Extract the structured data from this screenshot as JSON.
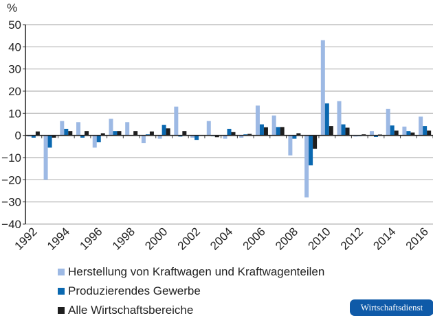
{
  "chart_data": {
    "type": "bar",
    "ylabel": "%",
    "ylim": [
      -40,
      50
    ],
    "yticks": [
      50,
      40,
      30,
      20,
      10,
      0,
      -10,
      -20,
      -30,
      -40
    ],
    "grid": true,
    "legend_position": "bottom",
    "categories": [
      1992,
      1993,
      1994,
      1995,
      1996,
      1997,
      1998,
      1999,
      2000,
      2001,
      2002,
      2003,
      2004,
      2005,
      2006,
      2007,
      2008,
      2009,
      2010,
      2011,
      2012,
      2013,
      2014,
      2015,
      2016
    ],
    "tick_labels": [
      "1992",
      "1994",
      "1996",
      "1998",
      "2000",
      "2002",
      "2004",
      "2006",
      "2008",
      "2010",
      "2012",
      "2014",
      "2016"
    ],
    "series": [
      {
        "name": "Herstellung von Kraftwagen und Kraftwagenteilen",
        "color": "#9db9e4",
        "values": [
          -0.5,
          -20,
          6.5,
          6,
          -5.5,
          7.5,
          6,
          -3.5,
          -1.5,
          13,
          -1,
          6.5,
          -1.5,
          -1,
          13.5,
          9,
          -9,
          -28,
          43,
          15.5,
          -0.5,
          2,
          12,
          4,
          8.5
        ]
      },
      {
        "name": "Produzierendes Gewerbe",
        "color": "#0a68b0",
        "values": [
          -1,
          -5.5,
          3,
          -1,
          -3,
          2,
          0.2,
          0.5,
          4.8,
          -0.5,
          -2,
          -0.3,
          3,
          0.5,
          5,
          3.8,
          -1.5,
          -13.5,
          14.5,
          5,
          -0.3,
          -0.7,
          4.5,
          2,
          4.2
        ]
      },
      {
        "name": "Alle Wirtschaftsbereiche",
        "color": "#1e1e1e",
        "values": [
          1.8,
          -1,
          2,
          2,
          1,
          2,
          2,
          1.8,
          3.2,
          2,
          0.2,
          -0.8,
          1.5,
          0.7,
          3.7,
          3.8,
          1,
          -6,
          4.2,
          3.5,
          0.5,
          0.4,
          2.2,
          1.3,
          2.2
        ]
      }
    ]
  },
  "logo": "Wirtschaftsdienst"
}
